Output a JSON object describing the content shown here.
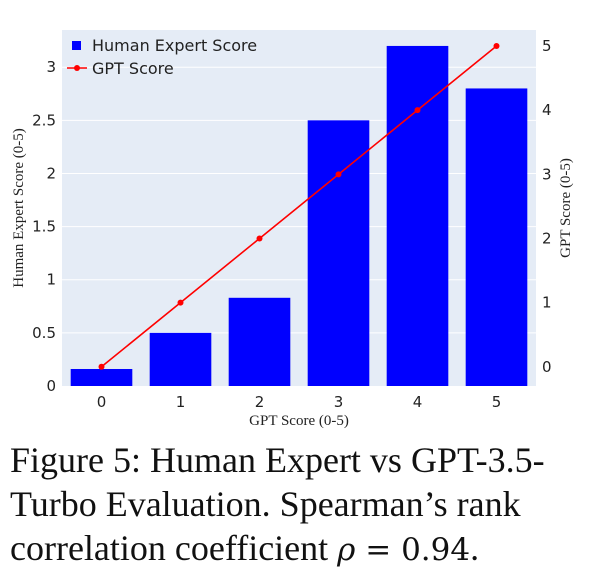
{
  "chart_data": {
    "type": "bar+line",
    "title": "",
    "xlabel": "GPT Score (0-5)",
    "categories": [
      "0",
      "1",
      "2",
      "3",
      "4",
      "5"
    ],
    "series": [
      {
        "name": "Human Expert Score",
        "type": "bar",
        "axis": "left",
        "color": "#0000ff",
        "values": [
          0.16,
          0.5,
          0.83,
          2.5,
          3.2,
          2.8
        ]
      },
      {
        "name": "GPT Score",
        "type": "line",
        "axis": "right",
        "color": "#ff0000",
        "values": [
          0,
          1,
          2,
          3,
          4,
          5
        ]
      }
    ],
    "ylabel_left": "Human Expert Score (0-5)",
    "ylabel_right": "GPT Score (0-5)",
    "ylim_left": [
      0,
      3.35
    ],
    "yticks_left": [
      "0",
      "0.5",
      "1",
      "1.5",
      "2",
      "2.5",
      "3"
    ],
    "ylim_right": [
      -0.3,
      5.25
    ],
    "yticks_right": [
      "0",
      "1",
      "2",
      "3",
      "4",
      "5"
    ],
    "grid": true,
    "legend_position": "top-left",
    "plot_background": "#e5ecf6"
  },
  "caption": {
    "prefix": "Figure 5:  Human Expert vs GPT-3.5-Turbo Evaluation. Spearman’s rank correlation coefficient",
    "symbol": "ρ",
    "equals": " = 0.94",
    "suffix": "."
  }
}
